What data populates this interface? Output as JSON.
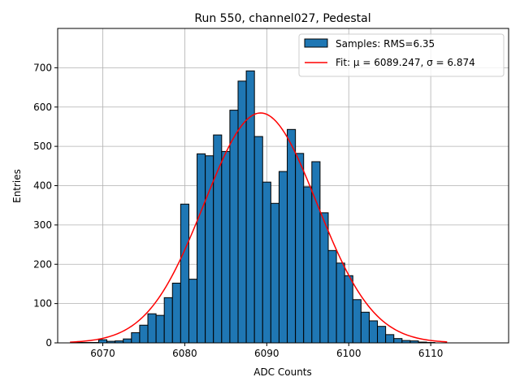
{
  "chart_data": {
    "type": "bar",
    "title": "Run 550, channel027, Pedestal",
    "xlabel": "ADC Counts",
    "ylabel": "Entries",
    "xlim": [
      6064.5,
      6119.5
    ],
    "ylim": [
      0,
      800
    ],
    "xticks": [
      6070,
      6080,
      6090,
      6100,
      6110
    ],
    "yticks": [
      0,
      100,
      200,
      300,
      400,
      500,
      600,
      700
    ],
    "grid": true,
    "legend_position": "top-right",
    "series": [
      {
        "name": "Samples: RMS=6.35",
        "kind": "histogram",
        "color": "#1f77b4",
        "edge_color": "#000000",
        "bin_width": 1,
        "bins": [
          {
            "x": 6067,
            "y": 1
          },
          {
            "x": 6068,
            "y": 1
          },
          {
            "x": 6069,
            "y": 1
          },
          {
            "x": 6070,
            "y": 8
          },
          {
            "x": 6071,
            "y": 4
          },
          {
            "x": 6072,
            "y": 5
          },
          {
            "x": 6073,
            "y": 10
          },
          {
            "x": 6074,
            "y": 26
          },
          {
            "x": 6075,
            "y": 45
          },
          {
            "x": 6076,
            "y": 74
          },
          {
            "x": 6077,
            "y": 70
          },
          {
            "x": 6078,
            "y": 115
          },
          {
            "x": 6079,
            "y": 152
          },
          {
            "x": 6080,
            "y": 353
          },
          {
            "x": 6081,
            "y": 162
          },
          {
            "x": 6082,
            "y": 481
          },
          {
            "x": 6083,
            "y": 476
          },
          {
            "x": 6084,
            "y": 529
          },
          {
            "x": 6085,
            "y": 487
          },
          {
            "x": 6086,
            "y": 592
          },
          {
            "x": 6087,
            "y": 666
          },
          {
            "x": 6088,
            "y": 692
          },
          {
            "x": 6089,
            "y": 525
          },
          {
            "x": 6090,
            "y": 409
          },
          {
            "x": 6091,
            "y": 355
          },
          {
            "x": 6092,
            "y": 436
          },
          {
            "x": 6093,
            "y": 543
          },
          {
            "x": 6094,
            "y": 482
          },
          {
            "x": 6095,
            "y": 397
          },
          {
            "x": 6096,
            "y": 461
          },
          {
            "x": 6097,
            "y": 331
          },
          {
            "x": 6098,
            "y": 235
          },
          {
            "x": 6099,
            "y": 203
          },
          {
            "x": 6100,
            "y": 171
          },
          {
            "x": 6101,
            "y": 110
          },
          {
            "x": 6102,
            "y": 78
          },
          {
            "x": 6103,
            "y": 56
          },
          {
            "x": 6104,
            "y": 42
          },
          {
            "x": 6105,
            "y": 21
          },
          {
            "x": 6106,
            "y": 11
          },
          {
            "x": 6107,
            "y": 6
          },
          {
            "x": 6108,
            "y": 5
          },
          {
            "x": 6109,
            "y": 2
          },
          {
            "x": 6110,
            "y": 1
          }
        ]
      },
      {
        "name": "Fit: μ = 6089.247, σ = 6.874",
        "kind": "gaussian-line",
        "color": "#ff0000",
        "mu": 6089.247,
        "sigma": 6.874,
        "amplitude": 585,
        "x_range": [
          6066,
          6112
        ]
      }
    ]
  }
}
